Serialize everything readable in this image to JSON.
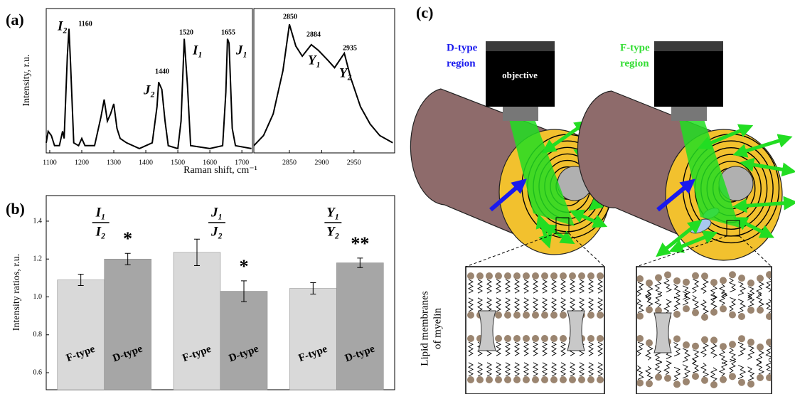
{
  "panel_labels": [
    "(a)",
    "(b)",
    "(c)"
  ],
  "chart_data": [
    {
      "type": "line",
      "y_label": "Intensity, r.u.",
      "x_label": "Raman shift, cm⁻¹",
      "color": "#000000",
      "x": [
        1089,
        1095,
        1105,
        1115,
        1130,
        1140,
        1145,
        1155,
        1160,
        1165,
        1175,
        1190,
        1200,
        1210,
        1240,
        1260,
        1270,
        1280,
        1290,
        1300,
        1310,
        1320,
        1340,
        1380,
        1420,
        1435,
        1440,
        1450,
        1460,
        1470,
        1500,
        1510,
        1520,
        1530,
        1540,
        1600,
        1640,
        1650,
        1655,
        1660,
        1670,
        1680,
        1730
      ],
      "values": [
        0.07,
        0.15,
        0.12,
        0.05,
        0.05,
        0.15,
        0.1,
        0.67,
        0.86,
        0.62,
        0.07,
        0.05,
        0.1,
        0.05,
        0.05,
        0.25,
        0.37,
        0.22,
        0.27,
        0.34,
        0.17,
        0.1,
        0.07,
        0.03,
        0.07,
        0.32,
        0.49,
        0.44,
        0.22,
        0.05,
        0.03,
        0.22,
        0.79,
        0.47,
        0.05,
        0.03,
        0.05,
        0.42,
        0.79,
        0.76,
        0.17,
        0.05,
        0.03
      ],
      "xlim": [
        1089,
        1733
      ],
      "ylim": [
        0,
        1
      ],
      "xticks": [
        1100,
        1200,
        1300,
        1400,
        1500,
        1600,
        1700
      ],
      "annotations": [
        "1160",
        "I₂",
        "1440",
        "J₂",
        "1520",
        "I₁",
        "1655",
        "J₁"
      ]
    },
    {
      "type": "line",
      "color": "#000000",
      "x": [
        2795,
        2810,
        2825,
        2840,
        2850,
        2860,
        2870,
        2884,
        2895,
        2910,
        2920,
        2935,
        2945,
        2960,
        2975,
        2990,
        3010
      ],
      "values": [
        0.05,
        0.12,
        0.27,
        0.57,
        0.89,
        0.74,
        0.67,
        0.75,
        0.71,
        0.64,
        0.59,
        0.69,
        0.52,
        0.32,
        0.2,
        0.12,
        0.07
      ],
      "xlim": [
        2795,
        3013
      ],
      "ylim": [
        0,
        1
      ],
      "xticks": [
        2850,
        2900,
        2950
      ],
      "annotations": [
        "2850",
        "2884",
        "2935",
        "Y₁",
        "Y₂"
      ]
    },
    {
      "type": "bar",
      "y_label": "Intensity ratios, r.u.",
      "categories": [
        {
          "numerator": "I₁",
          "denominator": "I₂"
        },
        {
          "numerator": "J₁",
          "denominator": "J₂"
        },
        {
          "numerator": "Y₁",
          "denominator": "Y₂"
        }
      ],
      "series": [
        {
          "name": "F-type",
          "color": "#d9d9d9",
          "values": [
            1.09,
            1.235,
            1.045
          ],
          "errors": [
            0.03,
            0.07,
            0.03
          ]
        },
        {
          "name": "D-type",
          "color": "#a6a6a6",
          "values": [
            1.2,
            1.03,
            1.18
          ],
          "errors": [
            0.03,
            0.055,
            0.025
          ]
        }
      ],
      "ylim": [
        0.51,
        1.535
      ],
      "yticks": [
        0.6,
        0.8,
        {
          "value": 1,
          "label": "1.0"
        },
        1.2,
        1.4
      ],
      "annotations": [
        "*",
        "*",
        "**"
      ]
    }
  ],
  "diagram": {
    "d_region": [
      "D-type",
      "region"
    ],
    "f_region": [
      "F-type",
      "region"
    ],
    "objective": "objective",
    "membrane_label": [
      "Lipid membranes",
      "of myelin"
    ]
  }
}
